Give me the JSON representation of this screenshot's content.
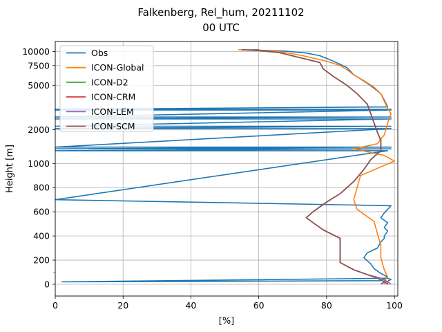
{
  "chart_data": {
    "type": "line",
    "title": "Falkenberg, Rel_hum, 20211102",
    "subtitle": "00 UTC",
    "xlabel": "[%]",
    "ylabel": "Height [m]",
    "xlim": [
      0,
      101
    ],
    "x_ticks": [
      0,
      20,
      40,
      60,
      80,
      100
    ],
    "y_ticks": [
      {
        "value": 0,
        "label": "0"
      },
      {
        "value": 200,
        "label": "200"
      },
      {
        "value": 400,
        "label": "400"
      },
      {
        "value": 600,
        "label": "600"
      },
      {
        "value": 800,
        "label": "800"
      },
      {
        "value": 1000,
        "label": "1000"
      },
      {
        "value": 2000,
        "label": "2000"
      },
      {
        "value": 5000,
        "label": "5000"
      },
      {
        "value": 7500,
        "label": "7500"
      },
      {
        "value": 10000,
        "label": "10000"
      }
    ],
    "y_minor_ticks": [
      100
    ],
    "y_scale": "piecewise: linear below 1000 m, logarithmic above",
    "grid": true,
    "legend_position": "top-left",
    "series": [
      {
        "name": "Obs",
        "color": "#1f77b4",
        "points": [
          [
            96,
            5
          ],
          [
            98,
            25
          ],
          [
            99,
            40
          ],
          [
            98,
            50
          ],
          [
            2,
            20
          ],
          [
            96,
            30
          ],
          [
            98,
            60
          ],
          [
            96,
            90
          ],
          [
            94,
            130
          ],
          [
            93,
            170
          ],
          [
            91,
            220
          ],
          [
            92,
            260
          ],
          [
            95,
            300
          ],
          [
            96,
            350
          ],
          [
            97,
            380
          ],
          [
            97,
            400
          ],
          [
            98,
            440
          ],
          [
            97,
            470
          ],
          [
            98,
            510
          ],
          [
            96,
            550
          ],
          [
            97,
            590
          ],
          [
            99,
            650
          ],
          [
            0,
            700
          ],
          [
            98,
            1300
          ],
          [
            0,
            1300
          ],
          [
            99,
            1350
          ],
          [
            0,
            1350
          ],
          [
            99,
            1400
          ],
          [
            0,
            1400
          ],
          [
            99,
            2050
          ],
          [
            0,
            2050
          ],
          [
            99,
            2150
          ],
          [
            0,
            2150
          ],
          [
            99,
            2500
          ],
          [
            0,
            2500
          ],
          [
            99,
            2600
          ],
          [
            0,
            2600
          ],
          [
            99,
            3000
          ],
          [
            0,
            3000
          ],
          [
            99,
            3050
          ],
          [
            0,
            3050
          ],
          [
            98,
            3200
          ],
          [
            97,
            3700
          ],
          [
            96,
            4200
          ],
          [
            94,
            4700
          ],
          [
            92,
            5200
          ],
          [
            90,
            5700
          ],
          [
            88,
            6200
          ],
          [
            87,
            6700
          ],
          [
            86,
            7200
          ],
          [
            84,
            7700
          ],
          [
            82,
            8200
          ],
          [
            80,
            8700
          ],
          [
            78,
            9200
          ],
          [
            74,
            9700
          ],
          [
            68,
            10100
          ],
          [
            60,
            10300
          ],
          [
            55,
            10350
          ],
          [
            60,
            10400
          ]
        ]
      },
      {
        "name": "ICON-Global",
        "color": "#ff7f0e",
        "points": [
          [
            97,
            0
          ],
          [
            97,
            30
          ],
          [
            98,
            60
          ],
          [
            97,
            120
          ],
          [
            96,
            220
          ],
          [
            96,
            320
          ],
          [
            95,
            420
          ],
          [
            94,
            520
          ],
          [
            89,
            620
          ],
          [
            88,
            700
          ],
          [
            89,
            800
          ],
          [
            90,
            900
          ],
          [
            100,
            1050
          ],
          [
            97,
            1180
          ],
          [
            88,
            1350
          ],
          [
            95,
            1500
          ],
          [
            97,
            1800
          ],
          [
            98,
            2300
          ],
          [
            99,
            2800
          ],
          [
            98,
            3100
          ],
          [
            97,
            3600
          ],
          [
            96,
            4200
          ],
          [
            94,
            4800
          ],
          [
            91,
            5500
          ],
          [
            88,
            6200
          ],
          [
            86,
            6900
          ],
          [
            84,
            7500
          ],
          [
            80,
            8200
          ],
          [
            73,
            9200
          ],
          [
            66,
            10000
          ],
          [
            60,
            10300
          ],
          [
            54,
            10400
          ]
        ]
      },
      {
        "name": "ICON-D2",
        "color": "#2ca02c",
        "points": [
          [
            98,
            0
          ],
          [
            97,
            20
          ],
          [
            95,
            50
          ],
          [
            92,
            80
          ],
          [
            88,
            120
          ],
          [
            84,
            180
          ],
          [
            84,
            230
          ],
          [
            84,
            300
          ],
          [
            84,
            380
          ],
          [
            79,
            450
          ],
          [
            74,
            550
          ],
          [
            76,
            600
          ],
          [
            80,
            680
          ],
          [
            84,
            750
          ],
          [
            88,
            850
          ],
          [
            91,
            950
          ],
          [
            93,
            1080
          ],
          [
            96,
            1300
          ],
          [
            96,
            1600
          ],
          [
            95,
            1900
          ],
          [
            94,
            2300
          ],
          [
            93,
            2800
          ],
          [
            92,
            3400
          ],
          [
            89,
            4200
          ],
          [
            86,
            5000
          ],
          [
            82,
            6000
          ],
          [
            79,
            7000
          ],
          [
            78,
            8000
          ],
          [
            71,
            9000
          ],
          [
            66,
            9800
          ],
          [
            60,
            10200
          ],
          [
            55,
            10400
          ]
        ]
      },
      {
        "name": "ICON-CRM",
        "color": "#d62728",
        "points": [
          [
            98,
            0
          ],
          [
            98,
            20
          ],
          [
            96,
            50
          ],
          [
            92,
            80
          ],
          [
            88,
            120
          ],
          [
            84,
            180
          ],
          [
            84,
            230
          ],
          [
            84,
            300
          ],
          [
            84,
            380
          ],
          [
            79,
            450
          ],
          [
            74,
            550
          ],
          [
            76,
            600
          ],
          [
            80,
            680
          ],
          [
            84,
            750
          ],
          [
            88,
            850
          ],
          [
            91,
            950
          ],
          [
            93,
            1080
          ],
          [
            96,
            1300
          ],
          [
            96,
            1600
          ],
          [
            95,
            1900
          ],
          [
            94,
            2300
          ],
          [
            93,
            2800
          ],
          [
            92,
            3400
          ],
          [
            89,
            4200
          ],
          [
            86,
            5000
          ],
          [
            82,
            6000
          ],
          [
            79,
            7000
          ],
          [
            78,
            8000
          ],
          [
            71,
            9000
          ],
          [
            66,
            9800
          ],
          [
            60,
            10200
          ],
          [
            55,
            10400
          ]
        ]
      },
      {
        "name": "ICON-LEM",
        "color": "#9467bd",
        "points": [
          [
            99,
            0
          ],
          [
            98,
            20
          ],
          [
            96,
            50
          ],
          [
            92,
            80
          ],
          [
            88,
            120
          ],
          [
            84,
            180
          ],
          [
            84,
            230
          ],
          [
            84,
            300
          ],
          [
            84,
            380
          ],
          [
            79,
            450
          ],
          [
            74,
            550
          ],
          [
            76,
            600
          ],
          [
            80,
            680
          ],
          [
            84,
            750
          ],
          [
            88,
            850
          ],
          [
            91,
            950
          ],
          [
            93,
            1080
          ],
          [
            96,
            1300
          ],
          [
            96,
            1600
          ],
          [
            95,
            1900
          ],
          [
            94,
            2300
          ],
          [
            93,
            2800
          ],
          [
            92,
            3400
          ],
          [
            89,
            4200
          ],
          [
            86,
            5000
          ],
          [
            82,
            6000
          ],
          [
            79,
            7000
          ],
          [
            78,
            8000
          ],
          [
            71,
            9000
          ],
          [
            66,
            9800
          ],
          [
            60,
            10200
          ],
          [
            55,
            10400
          ]
        ]
      },
      {
        "name": "ICON-SCM",
        "color": "#8c564b",
        "points": [
          [
            98,
            0
          ],
          [
            97,
            20
          ],
          [
            95,
            50
          ],
          [
            92,
            80
          ],
          [
            88,
            120
          ],
          [
            84,
            180
          ],
          [
            84,
            230
          ],
          [
            84,
            300
          ],
          [
            84,
            380
          ],
          [
            79,
            450
          ],
          [
            74,
            550
          ],
          [
            76,
            600
          ],
          [
            80,
            680
          ],
          [
            84,
            750
          ],
          [
            88,
            850
          ],
          [
            91,
            950
          ],
          [
            93,
            1080
          ],
          [
            96,
            1300
          ],
          [
            96,
            1600
          ],
          [
            95,
            1900
          ],
          [
            94,
            2300
          ],
          [
            93,
            2800
          ],
          [
            92,
            3400
          ],
          [
            89,
            4200
          ],
          [
            86,
            5000
          ],
          [
            82,
            6000
          ],
          [
            79,
            7000
          ],
          [
            78,
            8000
          ],
          [
            71,
            9000
          ],
          [
            66,
            9800
          ],
          [
            60,
            10200
          ],
          [
            55,
            10400
          ]
        ]
      }
    ]
  }
}
